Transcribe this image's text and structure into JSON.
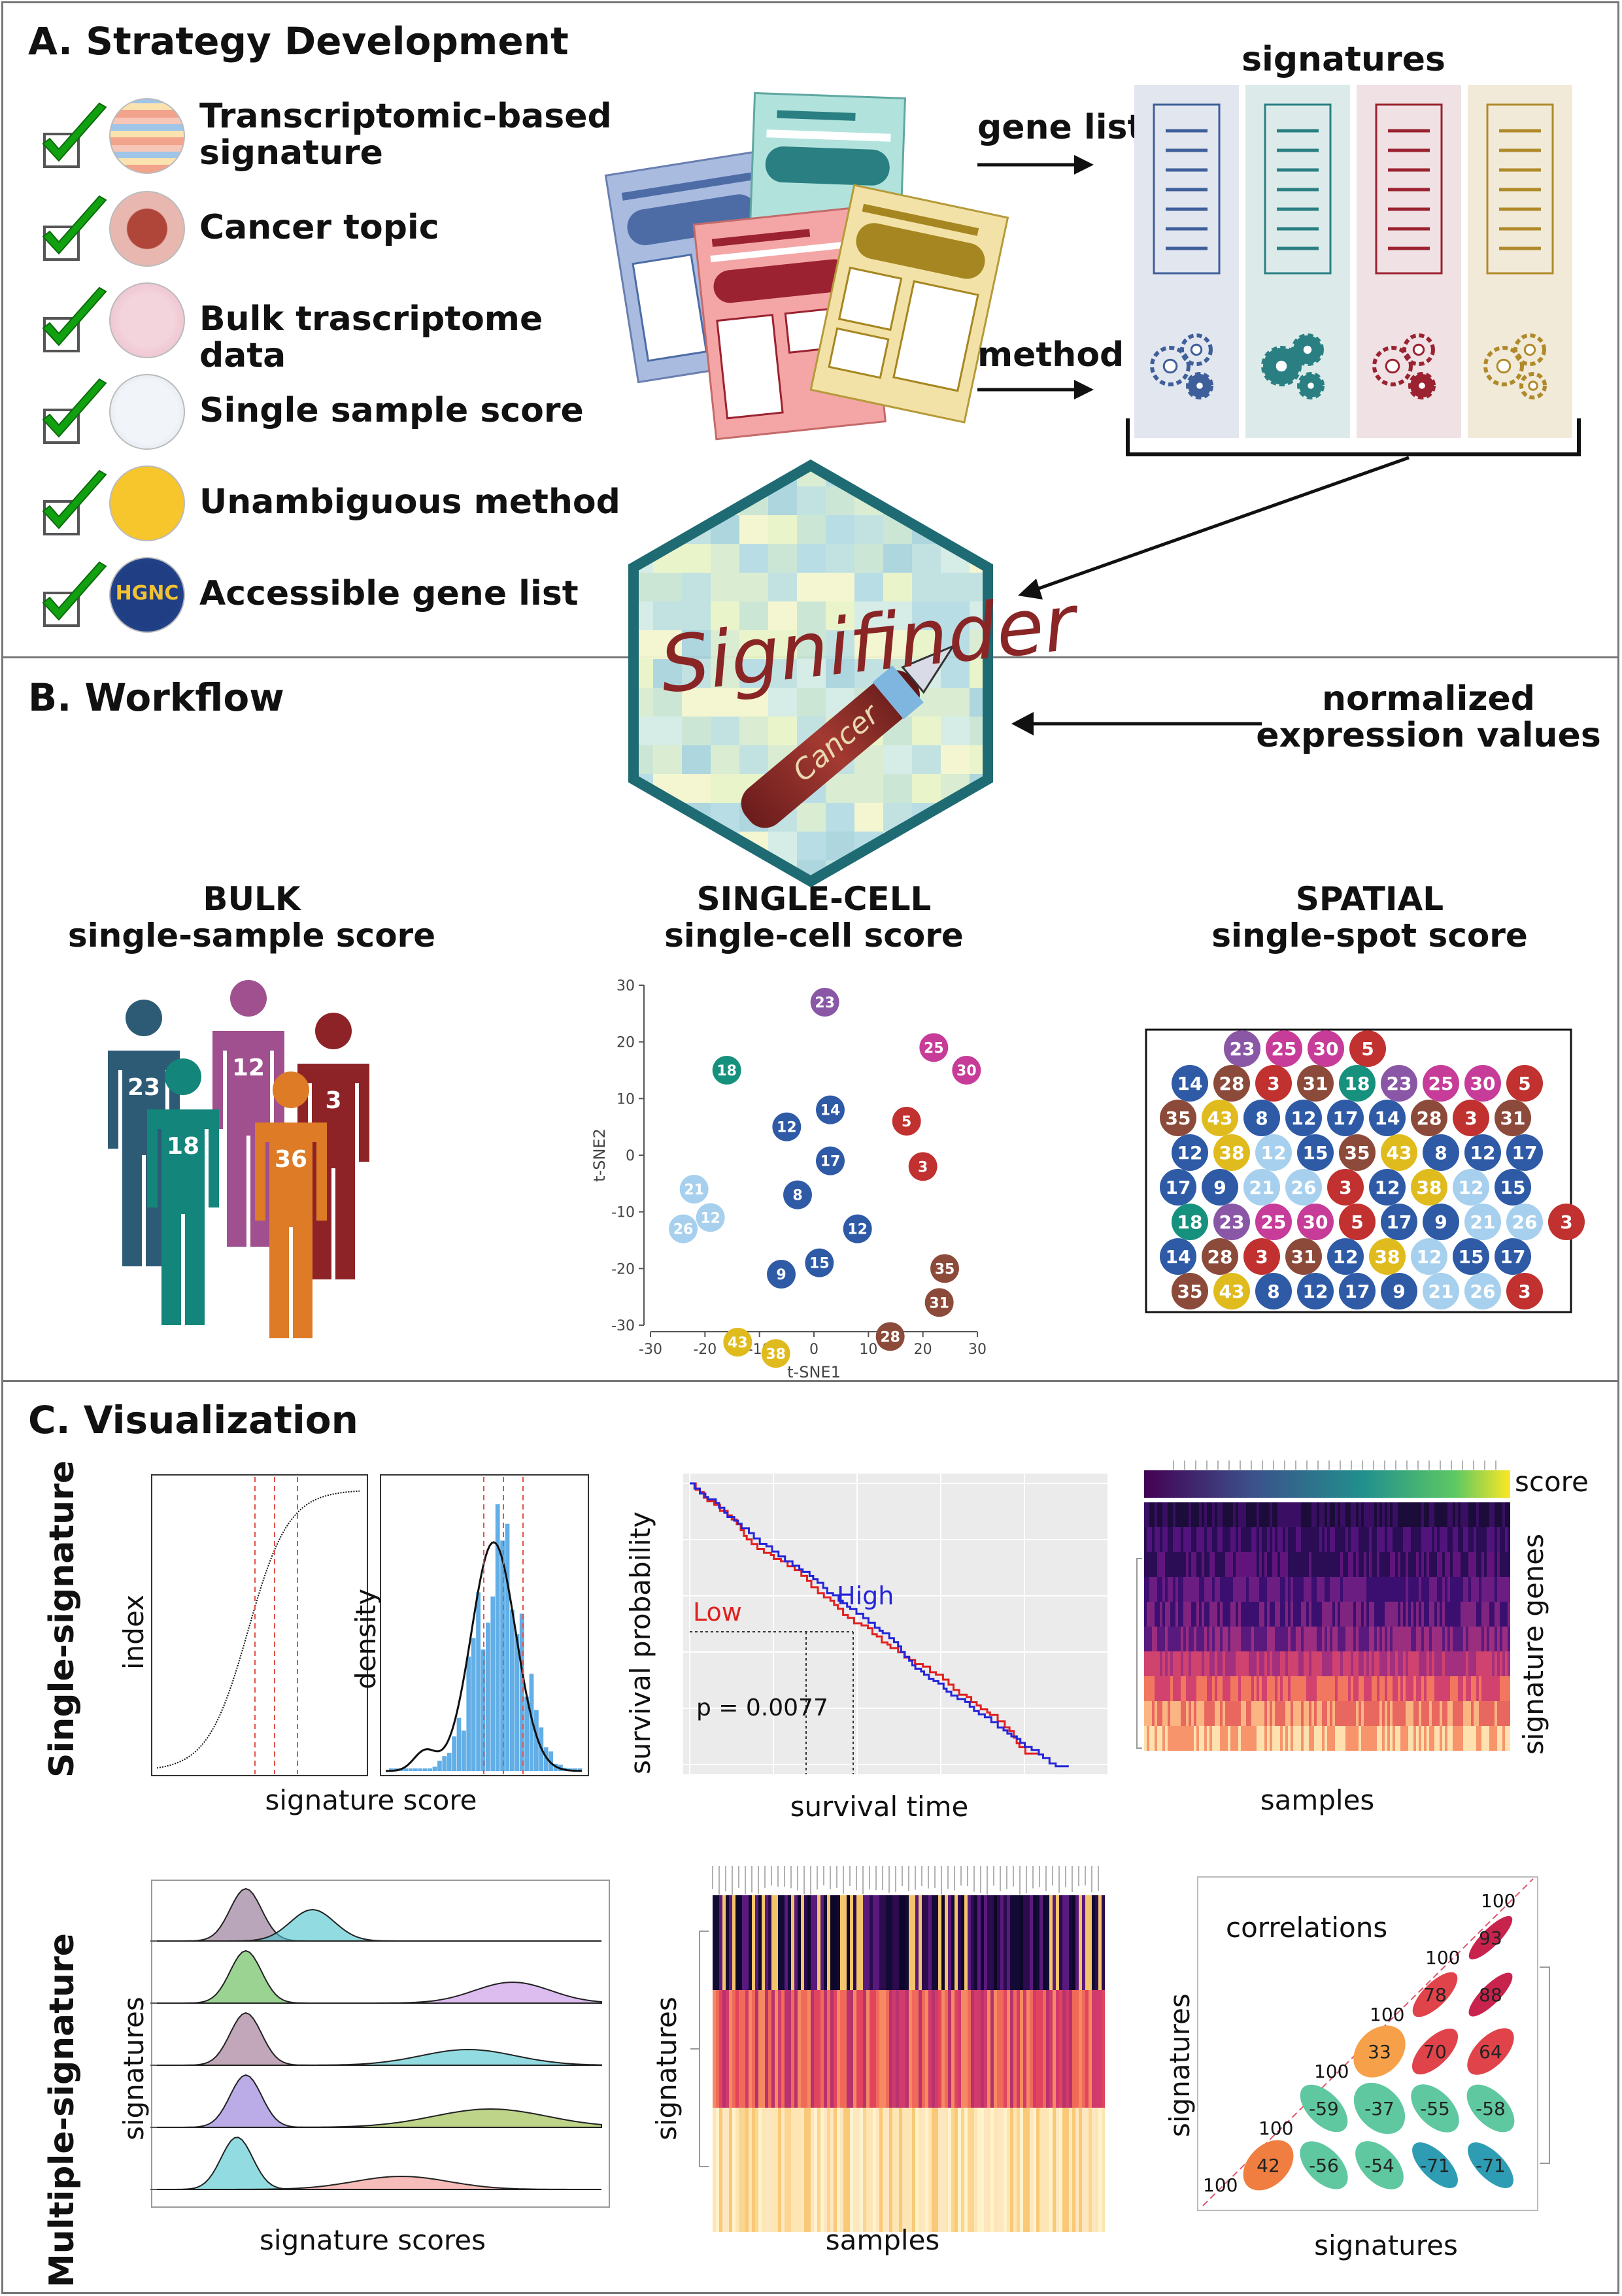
{
  "panelA": {
    "title": "A. Strategy Development",
    "checklist": [
      {
        "line1": "Transcriptomic-based",
        "line2": "signature",
        "icon": "heatmap-icon"
      },
      {
        "line1": "Cancer topic",
        "line2": "",
        "icon": "tumor-cell-icon"
      },
      {
        "line1": "Bulk trascriptome data",
        "line2": "",
        "icon": "tissue-icon"
      },
      {
        "line1": "Single sample score",
        "line2": "",
        "icon": "numbers-icon"
      },
      {
        "line1": "Unambiguous method",
        "line2": "",
        "icon": "gears-icon"
      },
      {
        "line1": "Accessible gene list",
        "line2": "",
        "icon": "hgnc-logo"
      }
    ],
    "hgnc_logo_text": "HGNC",
    "signatures_label": "signatures",
    "gene_list_label": "gene list",
    "method_label": "method",
    "signature_colors": [
      "#3f5f9a",
      "#2a7f82",
      "#9b2230",
      "#b08a2a"
    ],
    "signature_bg_colors": [
      "#e2e6ef",
      "#dcebea",
      "#efe1e4",
      "#f1ead9"
    ]
  },
  "logo": {
    "name_text": "Signifinder",
    "pen_text": "Cancer"
  },
  "panelB": {
    "title": "B. Workflow",
    "input_label_line1": "normalized",
    "input_label_line2": "expression values",
    "bulk": {
      "title": "BULK",
      "subtitle": "single-sample score",
      "people": [
        {
          "n": "23",
          "color": "#2d5b75"
        },
        {
          "n": "12",
          "color": "#a0508f"
        },
        {
          "n": "3",
          "color": "#8d2326"
        },
        {
          "n": "18",
          "color": "#14857a"
        },
        {
          "n": "36",
          "color": "#de7b26"
        }
      ]
    },
    "singlecell": {
      "title": "SINGLE-CELL",
      "subtitle": "single-cell score",
      "xlabel": "t-SNE1",
      "ylabel": "t-SNE2",
      "xticks": [
        "-30",
        "-20",
        "-10",
        "0",
        "10",
        "20",
        "30"
      ],
      "yticks": [
        "30",
        "20",
        "10",
        "0",
        "-10",
        "-20",
        "-30"
      ],
      "points": [
        {
          "x": 2,
          "y": 27,
          "n": "23",
          "c": "#8a57a6"
        },
        {
          "x": 22,
          "y": 19,
          "n": "25",
          "c": "#c63c98"
        },
        {
          "x": 28,
          "y": 15,
          "n": "30",
          "c": "#c63c98"
        },
        {
          "x": -16,
          "y": 15,
          "n": "18",
          "c": "#16917d"
        },
        {
          "x": 3,
          "y": 8,
          "n": "14",
          "c": "#2e5aa6"
        },
        {
          "x": -5,
          "y": 5,
          "n": "12",
          "c": "#2e5aa6"
        },
        {
          "x": 17,
          "y": 6,
          "n": "5",
          "c": "#c0312f"
        },
        {
          "x": 3,
          "y": -1,
          "n": "17",
          "c": "#2e5aa6"
        },
        {
          "x": 20,
          "y": -2,
          "n": "3",
          "c": "#c0312f"
        },
        {
          "x": -22,
          "y": -6,
          "n": "21",
          "c": "#a6d0ee"
        },
        {
          "x": -3,
          "y": -7,
          "n": "8",
          "c": "#2e5aa6"
        },
        {
          "x": -19,
          "y": -11,
          "n": "12",
          "c": "#a6d0ee"
        },
        {
          "x": -24,
          "y": -13,
          "n": "26",
          "c": "#a6d0ee"
        },
        {
          "x": 8,
          "y": -13,
          "n": "12",
          "c": "#2e5aa6"
        },
        {
          "x": 1,
          "y": -19,
          "n": "15",
          "c": "#2e5aa6"
        },
        {
          "x": -6,
          "y": -21,
          "n": "9",
          "c": "#2e5aa6"
        },
        {
          "x": 24,
          "y": -20,
          "n": "35",
          "c": "#8c4a3a"
        },
        {
          "x": 23,
          "y": -26,
          "n": "31",
          "c": "#8c4a3a"
        },
        {
          "x": 14,
          "y": -32,
          "n": "28",
          "c": "#8c4a3a"
        },
        {
          "x": -14,
          "y": -33,
          "n": "43",
          "c": "#e0bb1e"
        },
        {
          "x": -7,
          "y": -35,
          "n": "38",
          "c": "#e0bb1e"
        }
      ]
    },
    "spatial": {
      "title": "SPATIAL",
      "subtitle": "single-spot score",
      "rows": [
        [
          [
            "23",
            "#8a57a6"
          ],
          [
            "25",
            "#c63c98"
          ],
          [
            "30",
            "#c63c98"
          ],
          [
            "5",
            "#c0312f"
          ]
        ],
        [
          [
            "14",
            "#2e5aa6"
          ],
          [
            "28",
            "#8c4a3a"
          ],
          [
            "3",
            "#c0312f"
          ],
          [
            "31",
            "#8c4a3a"
          ],
          [
            "18",
            "#16917d"
          ],
          [
            "23",
            "#8a57a6"
          ],
          [
            "25",
            "#c63c98"
          ],
          [
            "30",
            "#c63c98"
          ],
          [
            "5",
            "#c0312f"
          ]
        ],
        [
          [
            "35",
            "#8c4a3a"
          ],
          [
            "43",
            "#e0bb1e"
          ],
          [
            "8",
            "#2e5aa6"
          ],
          [
            "12",
            "#2e5aa6"
          ],
          [
            "17",
            "#2e5aa6"
          ],
          [
            "14",
            "#2e5aa6"
          ],
          [
            "28",
            "#8c4a3a"
          ],
          [
            "3",
            "#c0312f"
          ],
          [
            "31",
            "#8c4a3a"
          ]
        ],
        [
          [
            "12",
            "#2e5aa6"
          ],
          [
            "38",
            "#e0bb1e"
          ],
          [
            "12",
            "#a6d0ee"
          ],
          [
            "15",
            "#2e5aa6"
          ],
          [
            "35",
            "#8c4a3a"
          ],
          [
            "43",
            "#e0bb1e"
          ],
          [
            "8",
            "#2e5aa6"
          ],
          [
            "12",
            "#2e5aa6"
          ],
          [
            "17",
            "#2e5aa6"
          ]
        ],
        [
          [
            "17",
            "#2e5aa6"
          ],
          [
            "9",
            "#2e5aa6"
          ],
          [
            "21",
            "#a6d0ee"
          ],
          [
            "26",
            "#a6d0ee"
          ],
          [
            "3",
            "#c0312f"
          ],
          [
            "12",
            "#2e5aa6"
          ],
          [
            "38",
            "#e0bb1e"
          ],
          [
            "12",
            "#a6d0ee"
          ],
          [
            "15",
            "#2e5aa6"
          ]
        ],
        [
          [
            "18",
            "#16917d"
          ],
          [
            "23",
            "#8a57a6"
          ],
          [
            "25",
            "#c63c98"
          ],
          [
            "30",
            "#c63c98"
          ],
          [
            "5",
            "#c0312f"
          ],
          [
            "17",
            "#2e5aa6"
          ],
          [
            "9",
            "#2e5aa6"
          ],
          [
            "21",
            "#a6d0ee"
          ],
          [
            "26",
            "#a6d0ee"
          ],
          [
            "3",
            "#c0312f"
          ]
        ],
        [
          [
            "14",
            "#2e5aa6"
          ],
          [
            "28",
            "#8c4a3a"
          ],
          [
            "3",
            "#c0312f"
          ],
          [
            "31",
            "#8c4a3a"
          ],
          [
            "12",
            "#2e5aa6"
          ],
          [
            "38",
            "#e0bb1e"
          ],
          [
            "12",
            "#a6d0ee"
          ],
          [
            "15",
            "#2e5aa6"
          ],
          [
            "17",
            "#2e5aa6"
          ]
        ],
        [
          [
            "35",
            "#8c4a3a"
          ],
          [
            "43",
            "#e0bb1e"
          ],
          [
            "8",
            "#2e5aa6"
          ],
          [
            "12",
            "#2e5aa6"
          ],
          [
            "17",
            "#2e5aa6"
          ],
          [
            "9",
            "#2e5aa6"
          ],
          [
            "21",
            "#a6d0ee"
          ],
          [
            "26",
            "#a6d0ee"
          ],
          [
            "3",
            "#c0312f"
          ]
        ]
      ]
    }
  },
  "panelC": {
    "title": "C. Visualization",
    "single_label": "Single-signature",
    "multiple_label": "Multiple-signature",
    "plot1": {
      "ylabel_left": "index",
      "ylabel_right": "density",
      "xlabel": "signature score"
    },
    "survival": {
      "ylabel": "survival probability",
      "xlabel": "survival time",
      "low_label": "Low",
      "high_label": "High",
      "pvalue": "p = 0.0077",
      "low_color": "#e0201f",
      "high_color": "#2424d8"
    },
    "heatmap1": {
      "score_label": "score",
      "ylabel": "signature genes",
      "xlabel": "samples"
    },
    "ridges": {
      "ylabel": "signatures",
      "xlabel": "signature scores"
    },
    "heatmap2": {
      "ylabel": "signatures",
      "xlabel": "samples"
    },
    "correlations": {
      "title": "correlations",
      "ylabel": "signatures",
      "xlabel": "signatures",
      "diag": [
        "100",
        "100",
        "100",
        "100",
        "100",
        "100"
      ],
      "cells": [
        {
          "row": 0,
          "col": 4,
          "v": "93"
        },
        {
          "row": 1,
          "col": 3,
          "v": "78"
        },
        {
          "row": 1,
          "col": 4,
          "v": "88"
        },
        {
          "row": 2,
          "col": 2,
          "v": "33"
        },
        {
          "row": 2,
          "col": 3,
          "v": "70"
        },
        {
          "row": 2,
          "col": 4,
          "v": "64"
        },
        {
          "row": 3,
          "col": 1,
          "v": "-59"
        },
        {
          "row": 3,
          "col": 2,
          "v": "-37"
        },
        {
          "row": 3,
          "col": 3,
          "v": "-55"
        },
        {
          "row": 3,
          "col": 4,
          "v": "-58"
        },
        {
          "row": 4,
          "col": 0,
          "v": "42"
        },
        {
          "row": 4,
          "col": 1,
          "v": "-56"
        },
        {
          "row": 4,
          "col": 2,
          "v": "-54"
        },
        {
          "row": 4,
          "col": 3,
          "v": "-71"
        },
        {
          "row": 4,
          "col": 4,
          "v": "-71"
        }
      ]
    }
  }
}
